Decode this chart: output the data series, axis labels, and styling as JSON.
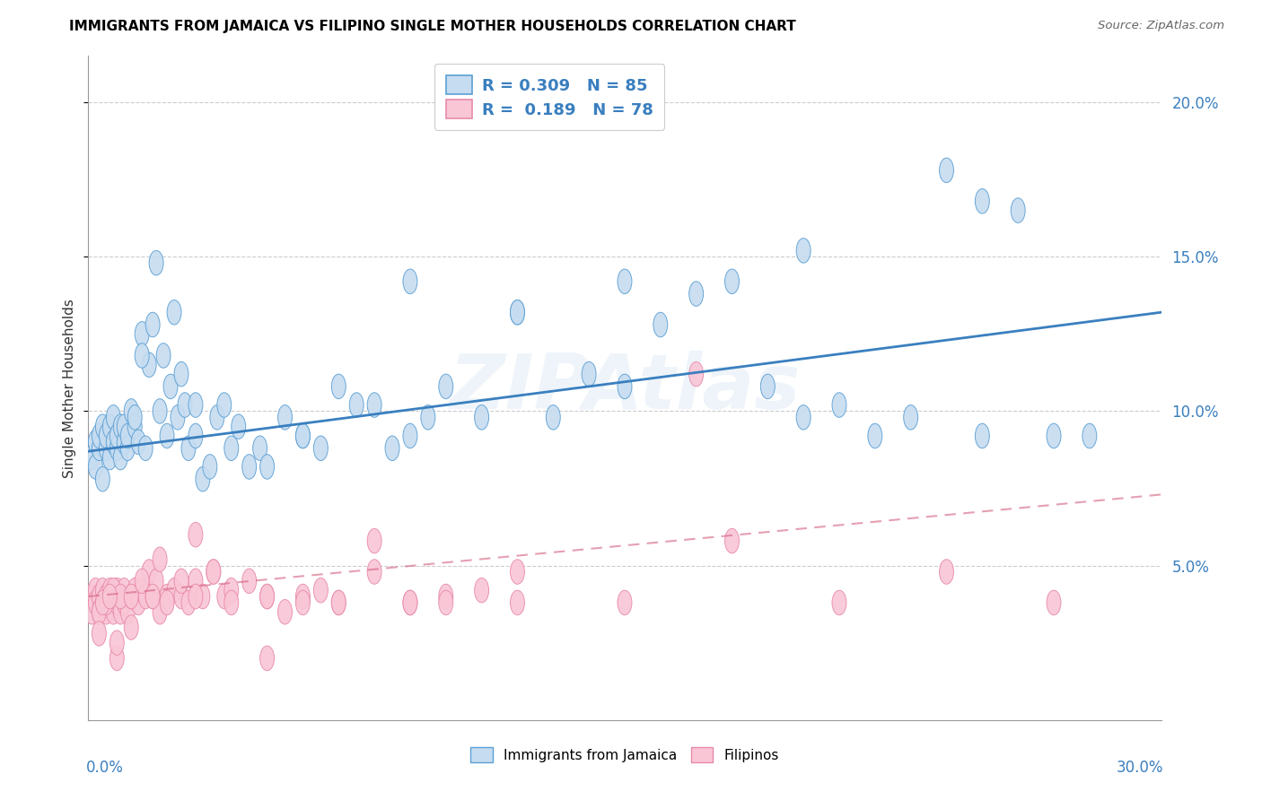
{
  "title": "IMMIGRANTS FROM JAMAICA VS FILIPINO SINGLE MOTHER HOUSEHOLDS CORRELATION CHART",
  "source": "Source: ZipAtlas.com",
  "ylabel": "Single Mother Households",
  "legend_label1": "Immigrants from Jamaica",
  "legend_label2": "Filipinos",
  "R1": "0.309",
  "N1": "85",
  "R2": "0.189",
  "N2": "78",
  "color_blue_fill": "#c6dcf0",
  "color_blue_edge": "#5b9fd4",
  "color_pink_fill": "#f9c6d6",
  "color_pink_edge": "#e88aaa",
  "color_blue_line": "#3a7fbf",
  "color_pink_line": "#d46080",
  "watermark": "ZIPAtlas",
  "xlim": [
    0.0,
    0.3
  ],
  "ylim": [
    0.0,
    0.215
  ],
  "yticks": [
    0.05,
    0.1,
    0.15,
    0.2
  ],
  "grid_color": "#cccccc",
  "background": "#ffffff",
  "jamaica_x": [
    0.001,
    0.002,
    0.002,
    0.003,
    0.003,
    0.004,
    0.004,
    0.005,
    0.005,
    0.006,
    0.006,
    0.007,
    0.007,
    0.008,
    0.008,
    0.009,
    0.009,
    0.01,
    0.01,
    0.011,
    0.011,
    0.012,
    0.013,
    0.013,
    0.014,
    0.015,
    0.016,
    0.017,
    0.018,
    0.019,
    0.02,
    0.021,
    0.022,
    0.023,
    0.024,
    0.025,
    0.026,
    0.027,
    0.028,
    0.03,
    0.032,
    0.034,
    0.036,
    0.038,
    0.04,
    0.042,
    0.045,
    0.048,
    0.05,
    0.055,
    0.06,
    0.065,
    0.07,
    0.075,
    0.08,
    0.085,
    0.09,
    0.095,
    0.1,
    0.11,
    0.12,
    0.13,
    0.14,
    0.15,
    0.16,
    0.17,
    0.18,
    0.19,
    0.2,
    0.21,
    0.22,
    0.23,
    0.24,
    0.25,
    0.26,
    0.27,
    0.015,
    0.03,
    0.06,
    0.09,
    0.12,
    0.15,
    0.2,
    0.25,
    0.28
  ],
  "jamaica_y": [
    0.085,
    0.09,
    0.082,
    0.088,
    0.092,
    0.078,
    0.095,
    0.088,
    0.092,
    0.085,
    0.095,
    0.09,
    0.098,
    0.088,
    0.092,
    0.085,
    0.095,
    0.09,
    0.095,
    0.088,
    0.092,
    0.1,
    0.095,
    0.098,
    0.09,
    0.125,
    0.088,
    0.115,
    0.128,
    0.148,
    0.1,
    0.118,
    0.092,
    0.108,
    0.132,
    0.098,
    0.112,
    0.102,
    0.088,
    0.092,
    0.078,
    0.082,
    0.098,
    0.102,
    0.088,
    0.095,
    0.082,
    0.088,
    0.082,
    0.098,
    0.092,
    0.088,
    0.108,
    0.102,
    0.102,
    0.088,
    0.092,
    0.098,
    0.108,
    0.098,
    0.132,
    0.098,
    0.112,
    0.142,
    0.128,
    0.138,
    0.142,
    0.108,
    0.098,
    0.102,
    0.092,
    0.098,
    0.178,
    0.168,
    0.165,
    0.092,
    0.118,
    0.102,
    0.092,
    0.142,
    0.132,
    0.108,
    0.152,
    0.092,
    0.092
  ],
  "filipinos_x": [
    0.001,
    0.001,
    0.002,
    0.002,
    0.003,
    0.003,
    0.004,
    0.004,
    0.005,
    0.005,
    0.006,
    0.006,
    0.007,
    0.007,
    0.008,
    0.008,
    0.009,
    0.009,
    0.01,
    0.01,
    0.011,
    0.012,
    0.013,
    0.014,
    0.015,
    0.016,
    0.017,
    0.018,
    0.019,
    0.02,
    0.022,
    0.024,
    0.026,
    0.028,
    0.03,
    0.032,
    0.035,
    0.038,
    0.04,
    0.045,
    0.05,
    0.055,
    0.06,
    0.065,
    0.07,
    0.08,
    0.09,
    0.1,
    0.11,
    0.12,
    0.003,
    0.005,
    0.007,
    0.009,
    0.012,
    0.015,
    0.018,
    0.022,
    0.026,
    0.03,
    0.035,
    0.04,
    0.05,
    0.06,
    0.07,
    0.08,
    0.09,
    0.1,
    0.12,
    0.15,
    0.18,
    0.21,
    0.24,
    0.27,
    0.004,
    0.006,
    0.008
  ],
  "filipinos_y": [
    0.04,
    0.035,
    0.042,
    0.038,
    0.04,
    0.035,
    0.042,
    0.038,
    0.04,
    0.035,
    0.038,
    0.042,
    0.04,
    0.035,
    0.042,
    0.038,
    0.04,
    0.035,
    0.042,
    0.038,
    0.035,
    0.04,
    0.042,
    0.038,
    0.042,
    0.04,
    0.048,
    0.04,
    0.045,
    0.035,
    0.04,
    0.042,
    0.04,
    0.038,
    0.045,
    0.04,
    0.048,
    0.04,
    0.042,
    0.045,
    0.04,
    0.035,
    0.04,
    0.042,
    0.038,
    0.048,
    0.038,
    0.04,
    0.042,
    0.038,
    0.035,
    0.038,
    0.042,
    0.04,
    0.04,
    0.045,
    0.04,
    0.038,
    0.045,
    0.04,
    0.048,
    0.038,
    0.04,
    0.038,
    0.038,
    0.058,
    0.038,
    0.038,
    0.048,
    0.038,
    0.058,
    0.038,
    0.048,
    0.038,
    0.038,
    0.04,
    0.02
  ],
  "filipinos_outlier_x": [
    0.003,
    0.008,
    0.012,
    0.02,
    0.03,
    0.05,
    0.17
  ],
  "filipinos_outlier_y": [
    0.028,
    0.025,
    0.03,
    0.052,
    0.06,
    0.02,
    0.112
  ]
}
